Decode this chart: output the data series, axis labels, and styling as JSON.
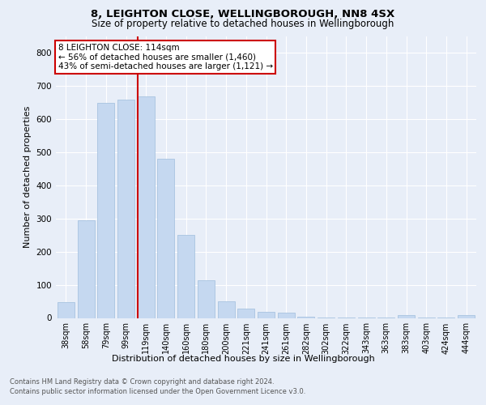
{
  "title1": "8, LEIGHTON CLOSE, WELLINGBOROUGH, NN8 4SX",
  "title2": "Size of property relative to detached houses in Wellingborough",
  "xlabel": "Distribution of detached houses by size in Wellingborough",
  "ylabel": "Number of detached properties",
  "categories": [
    "38sqm",
    "58sqm",
    "79sqm",
    "99sqm",
    "119sqm",
    "140sqm",
    "160sqm",
    "180sqm",
    "200sqm",
    "221sqm",
    "241sqm",
    "261sqm",
    "282sqm",
    "302sqm",
    "322sqm",
    "343sqm",
    "363sqm",
    "383sqm",
    "403sqm",
    "424sqm",
    "444sqm"
  ],
  "values": [
    47,
    295,
    650,
    660,
    670,
    480,
    250,
    113,
    50,
    27,
    18,
    17,
    4,
    1,
    1,
    1,
    1,
    9,
    1,
    1,
    8
  ],
  "bar_color": "#c5d8f0",
  "bar_edge_color": "#a8c4e0",
  "vline_color": "#cc0000",
  "vline_x_index": 4,
  "annotation_text": "8 LEIGHTON CLOSE: 114sqm\n← 56% of detached houses are smaller (1,460)\n43% of semi-detached houses are larger (1,121) →",
  "annotation_box_color": "#ffffff",
  "annotation_box_edge": "#cc0000",
  "ylim": [
    0,
    850
  ],
  "yticks": [
    0,
    100,
    200,
    300,
    400,
    500,
    600,
    700,
    800
  ],
  "footer1": "Contains HM Land Registry data © Crown copyright and database right 2024.",
  "footer2": "Contains public sector information licensed under the Open Government Licence v3.0.",
  "bg_color": "#e8eef8",
  "plot_bg_color": "#e8eef8",
  "title1_fontsize": 9.5,
  "title2_fontsize": 8.5,
  "ylabel_fontsize": 8,
  "xlabel_fontsize": 8,
  "tick_fontsize": 7,
  "ytick_fontsize": 7.5,
  "annotation_fontsize": 7.5,
  "footer_fontsize": 6
}
